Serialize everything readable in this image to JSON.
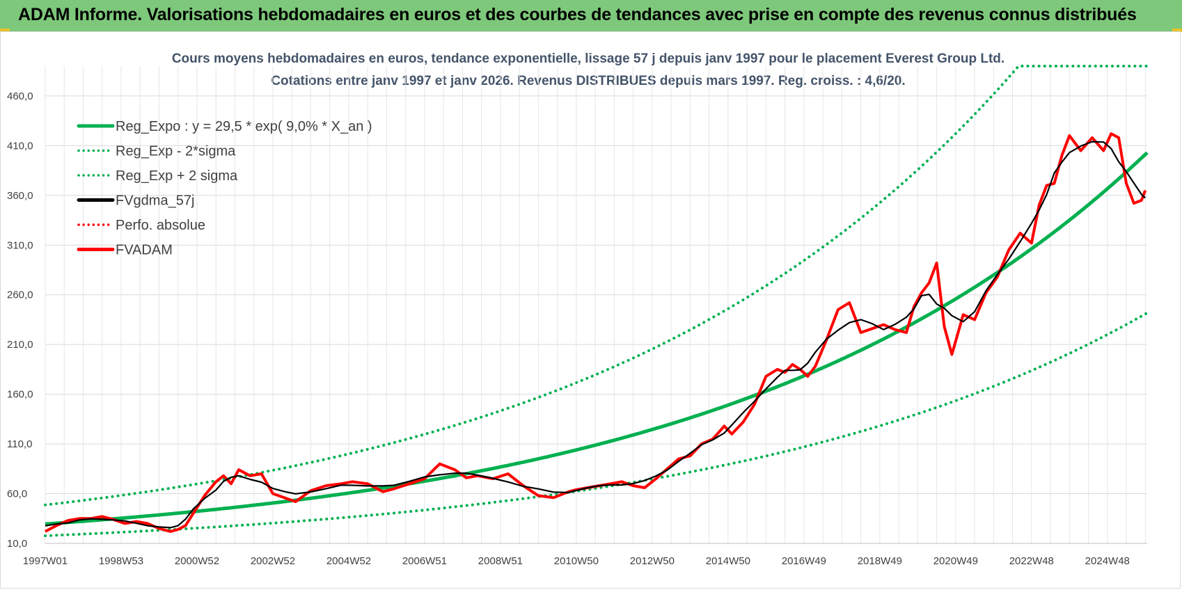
{
  "header": {
    "title": "ADAM Informe. Valorisations hebdomadaires en euros et des courbes de tendances avec prise en compte des revenus connus distribués",
    "background": "#7dc87a"
  },
  "chart_data": {
    "type": "line",
    "title_line1": "Cours moyens hebdomadaires en euros, tendance exponentielle, lissage 57 j depuis janv 1997 pour le placement Everest Group Ltd.",
    "title_line2": "Cotations entre janv 1997 et janv 2026. Revenus DISTRIBUES depuis mars 1997. Reg. croiss. : 4,6/20.",
    "x_range": [
      1997.0,
      2026.05
    ],
    "ylim": [
      10,
      490
    ],
    "y_ticks": [
      10,
      60,
      110,
      160,
      210,
      260,
      310,
      360,
      410,
      460
    ],
    "y_tick_labels": [
      "10,0",
      "60,0",
      "110,0",
      "160,0",
      "210,0",
      "260,0",
      "310,0",
      "360,0",
      "410,0",
      "460,0"
    ],
    "x_ticks": [
      1997.0,
      1999.0,
      2001.0,
      2003.0,
      2005.0,
      2007.0,
      2009.0,
      2011.0,
      2013.0,
      2015.0,
      2017.0,
      2019.0,
      2021.0,
      2023.0,
      2025.0
    ],
    "x_tick_labels": [
      "1997W01",
      "1998W53",
      "2000W52",
      "2002W52",
      "2004W52",
      "2006W51",
      "2008W51",
      "2010W50",
      "2012W50",
      "2014W50",
      "2016W49",
      "2018W49",
      "2020W49",
      "2022W48",
      "2024W48"
    ],
    "legend": [
      {
        "label": "Reg_Expo : y = 29,5 * exp( 9,0% *  X_an )",
        "color": "#00b050",
        "style": "solid"
      },
      {
        "label": "Reg_Exp - 2*sigma",
        "color": "#00b050",
        "style": "dotted"
      },
      {
        "label": "Reg_Exp + 2 sigma",
        "color": "#00b050",
        "style": "dotted"
      },
      {
        "label": "FVgdma_57j",
        "color": "#000000",
        "style": "solid"
      },
      {
        "label": "Perfo. absolue",
        "color": "#ff0000",
        "style": "dotted"
      },
      {
        "label": "FVADAM",
        "color": "#ff0000",
        "style": "solid"
      }
    ],
    "regression": {
      "a": 29.5,
      "growth_rate": 0.09,
      "lower_factor": 0.6,
      "upper_factor": 1.65
    },
    "series_fvadam": {
      "name": "FVADAM",
      "x": [
        1997.0,
        1997.3,
        1997.6,
        1997.9,
        1998.2,
        1998.5,
        1998.8,
        1999.1,
        1999.4,
        1999.7,
        2000.0,
        2000.3,
        2000.5,
        2000.7,
        2000.9,
        2001.2,
        2001.5,
        2001.7,
        2001.9,
        2002.1,
        2002.4,
        2002.7,
        2003.0,
        2003.3,
        2003.6,
        2004.0,
        2004.4,
        2004.8,
        2005.1,
        2005.5,
        2005.9,
        2006.2,
        2006.6,
        2007.0,
        2007.4,
        2007.8,
        2008.1,
        2008.4,
        2008.8,
        2009.2,
        2009.6,
        2010.0,
        2010.4,
        2010.8,
        2011.0,
        2011.3,
        2011.6,
        2011.9,
        2012.2,
        2012.5,
        2012.8,
        2013.1,
        2013.4,
        2013.7,
        2014.0,
        2014.3,
        2014.6,
        2014.9,
        2015.1,
        2015.4,
        2015.7,
        2016.0,
        2016.3,
        2016.5,
        2016.7,
        2016.9,
        2017.1,
        2017.3,
        2017.6,
        2017.9,
        2018.2,
        2018.5,
        2018.8,
        2019.1,
        2019.4,
        2019.7,
        2019.9,
        2020.1,
        2020.3,
        2020.5,
        2020.7,
        2020.9,
        2021.2,
        2021.5,
        2021.8,
        2022.1,
        2022.4,
        2022.7,
        2023.0,
        2023.2,
        2023.4,
        2023.6,
        2023.8,
        2024.0,
        2024.3,
        2024.6,
        2024.9,
        2025.1,
        2025.3,
        2025.5,
        2025.7,
        2025.9,
        2026.0
      ],
      "y": [
        22,
        28,
        33,
        35,
        35,
        37,
        34,
        30,
        32,
        30,
        25,
        22,
        24,
        28,
        40,
        58,
        72,
        78,
        70,
        84,
        78,
        80,
        60,
        56,
        52,
        63,
        68,
        70,
        72,
        70,
        62,
        65,
        70,
        75,
        90,
        84,
        76,
        78,
        75,
        80,
        68,
        58,
        56,
        62,
        64,
        66,
        68,
        70,
        72,
        68,
        66,
        75,
        85,
        95,
        98,
        110,
        115,
        128,
        120,
        132,
        150,
        178,
        185,
        182,
        190,
        185,
        178,
        188,
        215,
        245,
        252,
        222,
        226,
        230,
        225,
        222,
        248,
        262,
        272,
        292,
        228,
        200,
        240,
        235,
        262,
        278,
        305,
        322,
        312,
        350,
        370,
        372,
        400,
        420,
        405,
        418,
        405,
        422,
        418,
        372,
        352,
        355,
        365
      ]
    },
    "smoothing_window": 5
  }
}
